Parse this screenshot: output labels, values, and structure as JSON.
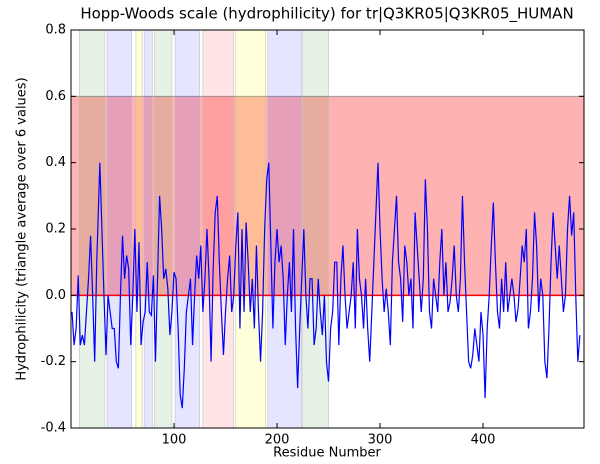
{
  "chart_data": {
    "type": "line",
    "title": "Hopp-Woods scale (hydrophilicity) for tr|Q3KR05|Q3KR05_HUMAN",
    "xlabel": "Residue Number",
    "ylabel": "Hydrophilicity (triangle average over 6 values)",
    "xlim": [
      0,
      498
    ],
    "ylim": [
      -0.4,
      0.8
    ],
    "xticks": [
      100,
      200,
      300,
      400
    ],
    "yticks": [
      -0.4,
      -0.2,
      {
        "value": 0,
        "label": "0.0"
      },
      0.2,
      0.4,
      0.6,
      0.8
    ],
    "color": "#0000ff",
    "band": {
      "ylim": [
        0,
        0.6
      ],
      "color": "#ff0000"
    },
    "hline": {
      "y": 0,
      "color": "#ff0000"
    },
    "regions": [
      {
        "start": 8,
        "end": 33,
        "color": "#008000"
      },
      {
        "start": 35,
        "end": 59,
        "color": "#0000ff"
      },
      {
        "start": 63,
        "end": 69,
        "color": "#ffff00"
      },
      {
        "start": 71,
        "end": 79,
        "color": "#0000ff"
      },
      {
        "start": 81,
        "end": 98,
        "color": "#008000"
      },
      {
        "start": 101,
        "end": 125,
        "color": "#0000ff"
      },
      {
        "start": 128,
        "end": 158,
        "color": "#ff0000"
      },
      {
        "start": 160,
        "end": 189,
        "color": "#ffff00"
      },
      {
        "start": 191,
        "end": 224,
        "color": "#0000ff"
      },
      {
        "start": 225,
        "end": 250,
        "color": "#008000"
      }
    ],
    "x": [
      1,
      3,
      5,
      7,
      9,
      11,
      13,
      15,
      17,
      19,
      21,
      23,
      25,
      27,
      28,
      30,
      32,
      34,
      36,
      38,
      40,
      42,
      44,
      46,
      48,
      50,
      52,
      54,
      56,
      58,
      60,
      62,
      64,
      66,
      68,
      70,
      72,
      74,
      76,
      78,
      80,
      82,
      84,
      86,
      88,
      90,
      92,
      94,
      96,
      98,
      100,
      102,
      104,
      106,
      108,
      110,
      112,
      114,
      116,
      118,
      120,
      122,
      124,
      126,
      128,
      130,
      132,
      134,
      136,
      138,
      140,
      142,
      144,
      146,
      148,
      150,
      152,
      154,
      156,
      158,
      160,
      162,
      164,
      166,
      168,
      170,
      172,
      174,
      176,
      178,
      180,
      182,
      184,
      186,
      188,
      190,
      192,
      194,
      196,
      198,
      200,
      202,
      204,
      206,
      208,
      210,
      212,
      214,
      216,
      218,
      220,
      222,
      224,
      226,
      228,
      230,
      232,
      234,
      236,
      238,
      240,
      242,
      244,
      246,
      248,
      250,
      252,
      254,
      256,
      258,
      260,
      262,
      264,
      266,
      268,
      270,
      272,
      274,
      276,
      278,
      280,
      282,
      284,
      286,
      288,
      290,
      292,
      294,
      296,
      298,
      300,
      302,
      304,
      306,
      308,
      310,
      312,
      314,
      316,
      318,
      320,
      322,
      324,
      326,
      328,
      330,
      332,
      334,
      336,
      338,
      340,
      342,
      344,
      346,
      348,
      350,
      352,
      354,
      356,
      358,
      360,
      362,
      364,
      366,
      368,
      370,
      372,
      374,
      376,
      378,
      380,
      382,
      384,
      386,
      388,
      390,
      392,
      394,
      396,
      398,
      400,
      402,
      404,
      406,
      408,
      410,
      412,
      414,
      416,
      418,
      420,
      422,
      424,
      426,
      428,
      430,
      432,
      434,
      436,
      438,
      440,
      442,
      444,
      446,
      448,
      450,
      452,
      454,
      456,
      458,
      460,
      462,
      464,
      466,
      468,
      470,
      472,
      474,
      476,
      478,
      480,
      482,
      484,
      486,
      488,
      490,
      492,
      494
    ],
    "values": [
      -0.05,
      -0.15,
      -0.1,
      0.06,
      -0.15,
      -0.12,
      -0.15,
      -0.05,
      0.05,
      0.18,
      0.0,
      -0.2,
      0.1,
      0.3,
      0.4,
      0.2,
      0.0,
      -0.18,
      0.0,
      -0.05,
      -0.1,
      -0.1,
      -0.2,
      -0.22,
      0.0,
      0.18,
      0.05,
      0.12,
      0.08,
      -0.15,
      0.0,
      0.2,
      -0.05,
      0.16,
      -0.15,
      -0.08,
      -0.05,
      0.1,
      -0.05,
      -0.06,
      0.06,
      -0.2,
      0.05,
      0.3,
      0.2,
      0.05,
      0.08,
      0.02,
      -0.12,
      -0.05,
      0.07,
      0.05,
      -0.1,
      -0.3,
      -0.34,
      -0.22,
      -0.05,
      0.0,
      0.05,
      -0.15,
      0.0,
      0.12,
      0.05,
      0.15,
      -0.05,
      0.05,
      0.2,
      0.05,
      -0.2,
      0.08,
      0.25,
      0.3,
      0.1,
      -0.05,
      -0.18,
      -0.05,
      0.05,
      0.12,
      -0.05,
      0.0,
      0.15,
      0.25,
      -0.1,
      0.2,
      -0.05,
      0.22,
      0.1,
      -0.05,
      0.05,
      -0.1,
      0.15,
      -0.05,
      -0.2,
      -0.05,
      0.2,
      0.35,
      0.4,
      0.15,
      -0.1,
      0.1,
      0.2,
      0.1,
      0.15,
      0.05,
      -0.15,
      0.0,
      0.1,
      -0.05,
      0.2,
      -0.1,
      -0.28,
      -0.1,
      0.05,
      0.2,
      0.0,
      -0.1,
      0.05,
      0.05,
      -0.15,
      -0.1,
      0.05,
      -0.05,
      -0.12,
      0.0,
      -0.2,
      -0.26,
      -0.1,
      -0.05,
      0.1,
      0.1,
      -0.15,
      0.05,
      0.15,
      0.0,
      -0.1,
      -0.05,
      0.0,
      0.1,
      -0.1,
      0.2,
      0.05,
      0.0,
      -0.1,
      0.05,
      -0.1,
      -0.2,
      -0.05,
      0.1,
      0.25,
      0.4,
      0.2,
      0.05,
      -0.05,
      0.02,
      -0.05,
      -0.15,
      0.1,
      0.2,
      0.3,
      0.1,
      0.05,
      -0.08,
      0.15,
      0.1,
      0.0,
      0.05,
      -0.1,
      0.25,
      0.15,
      0.05,
      -0.05,
      0.05,
      0.35,
      0.2,
      -0.05,
      -0.1,
      0.05,
      0.0,
      -0.05,
      0.1,
      0.2,
      0.0,
      0.1,
      -0.05,
      -0.02,
      0.05,
      0.15,
      0.0,
      -0.05,
      0.05,
      0.3,
      0.1,
      -0.05,
      -0.2,
      -0.22,
      -0.18,
      -0.1,
      -0.15,
      -0.2,
      -0.05,
      -0.12,
      -0.31,
      -0.1,
      0.0,
      0.15,
      0.28,
      0.1,
      -0.05,
      -0.1,
      0.05,
      -0.05,
      0.1,
      -0.05,
      0.0,
      0.05,
      0.0,
      -0.08,
      -0.04,
      0.05,
      0.15,
      0.1,
      0.2,
      -0.1,
      -0.05,
      0.05,
      0.25,
      0.15,
      -0.05,
      0.05,
      0.0,
      -0.2,
      -0.25,
      -0.1,
      0.1,
      0.25,
      0.15,
      0.05,
      0.15,
      0.05,
      -0.05,
      0.0,
      0.2,
      0.3,
      0.18,
      0.25,
      0.0,
      -0.2,
      -0.12
    ]
  }
}
